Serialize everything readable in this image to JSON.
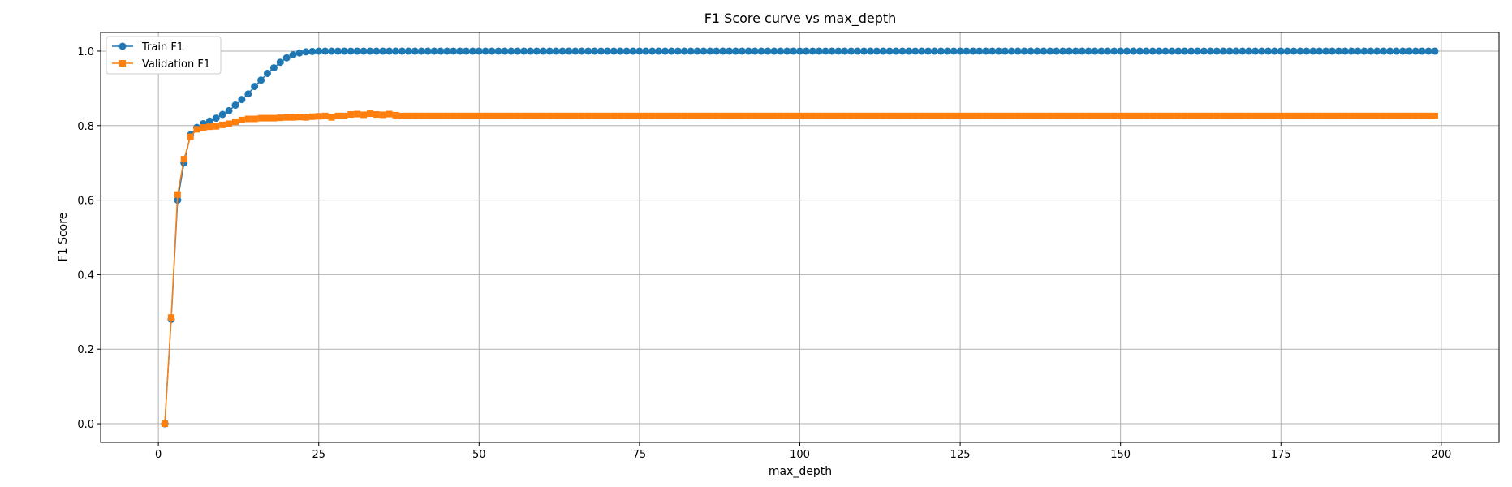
{
  "chart_data": {
    "type": "line",
    "title": "F1 Score curve vs max_depth",
    "xlabel": "max_depth",
    "ylabel": "F1 Score",
    "xlim": [
      -9,
      209
    ],
    "ylim": [
      -0.05,
      1.05
    ],
    "xticks": [
      0,
      25,
      50,
      75,
      100,
      125,
      150,
      175,
      200
    ],
    "yticks": [
      0.0,
      0.2,
      0.4,
      0.6,
      0.8,
      1.0
    ],
    "grid": true,
    "legend": "top-left",
    "x": {
      "start": 1,
      "end": 199,
      "step": 1
    },
    "series": [
      {
        "name": "Train F1",
        "color": "#1f77b4",
        "marker": "circle",
        "values_head": [
          0.0,
          0.28,
          0.6,
          0.7,
          0.775,
          0.795,
          0.805,
          0.812,
          0.82,
          0.83,
          0.84,
          0.855,
          0.87,
          0.885,
          0.905,
          0.922,
          0.94,
          0.955,
          0.97,
          0.982,
          0.99,
          0.995,
          0.998,
          0.999,
          1.0
        ],
        "tail_value": 1.0
      },
      {
        "name": "Validation F1",
        "color": "#ff7f0e",
        "marker": "square",
        "values_head": [
          0.0,
          0.285,
          0.615,
          0.71,
          0.77,
          0.79,
          0.795,
          0.797,
          0.798,
          0.802,
          0.805,
          0.81,
          0.815,
          0.818,
          0.818,
          0.82,
          0.82,
          0.82,
          0.821,
          0.822,
          0.822,
          0.823,
          0.822,
          0.824,
          0.825,
          0.826,
          0.822,
          0.826,
          0.826,
          0.83,
          0.831,
          0.829,
          0.832,
          0.83,
          0.829,
          0.831,
          0.828,
          0.826
        ],
        "tail_value": 0.826
      }
    ]
  }
}
